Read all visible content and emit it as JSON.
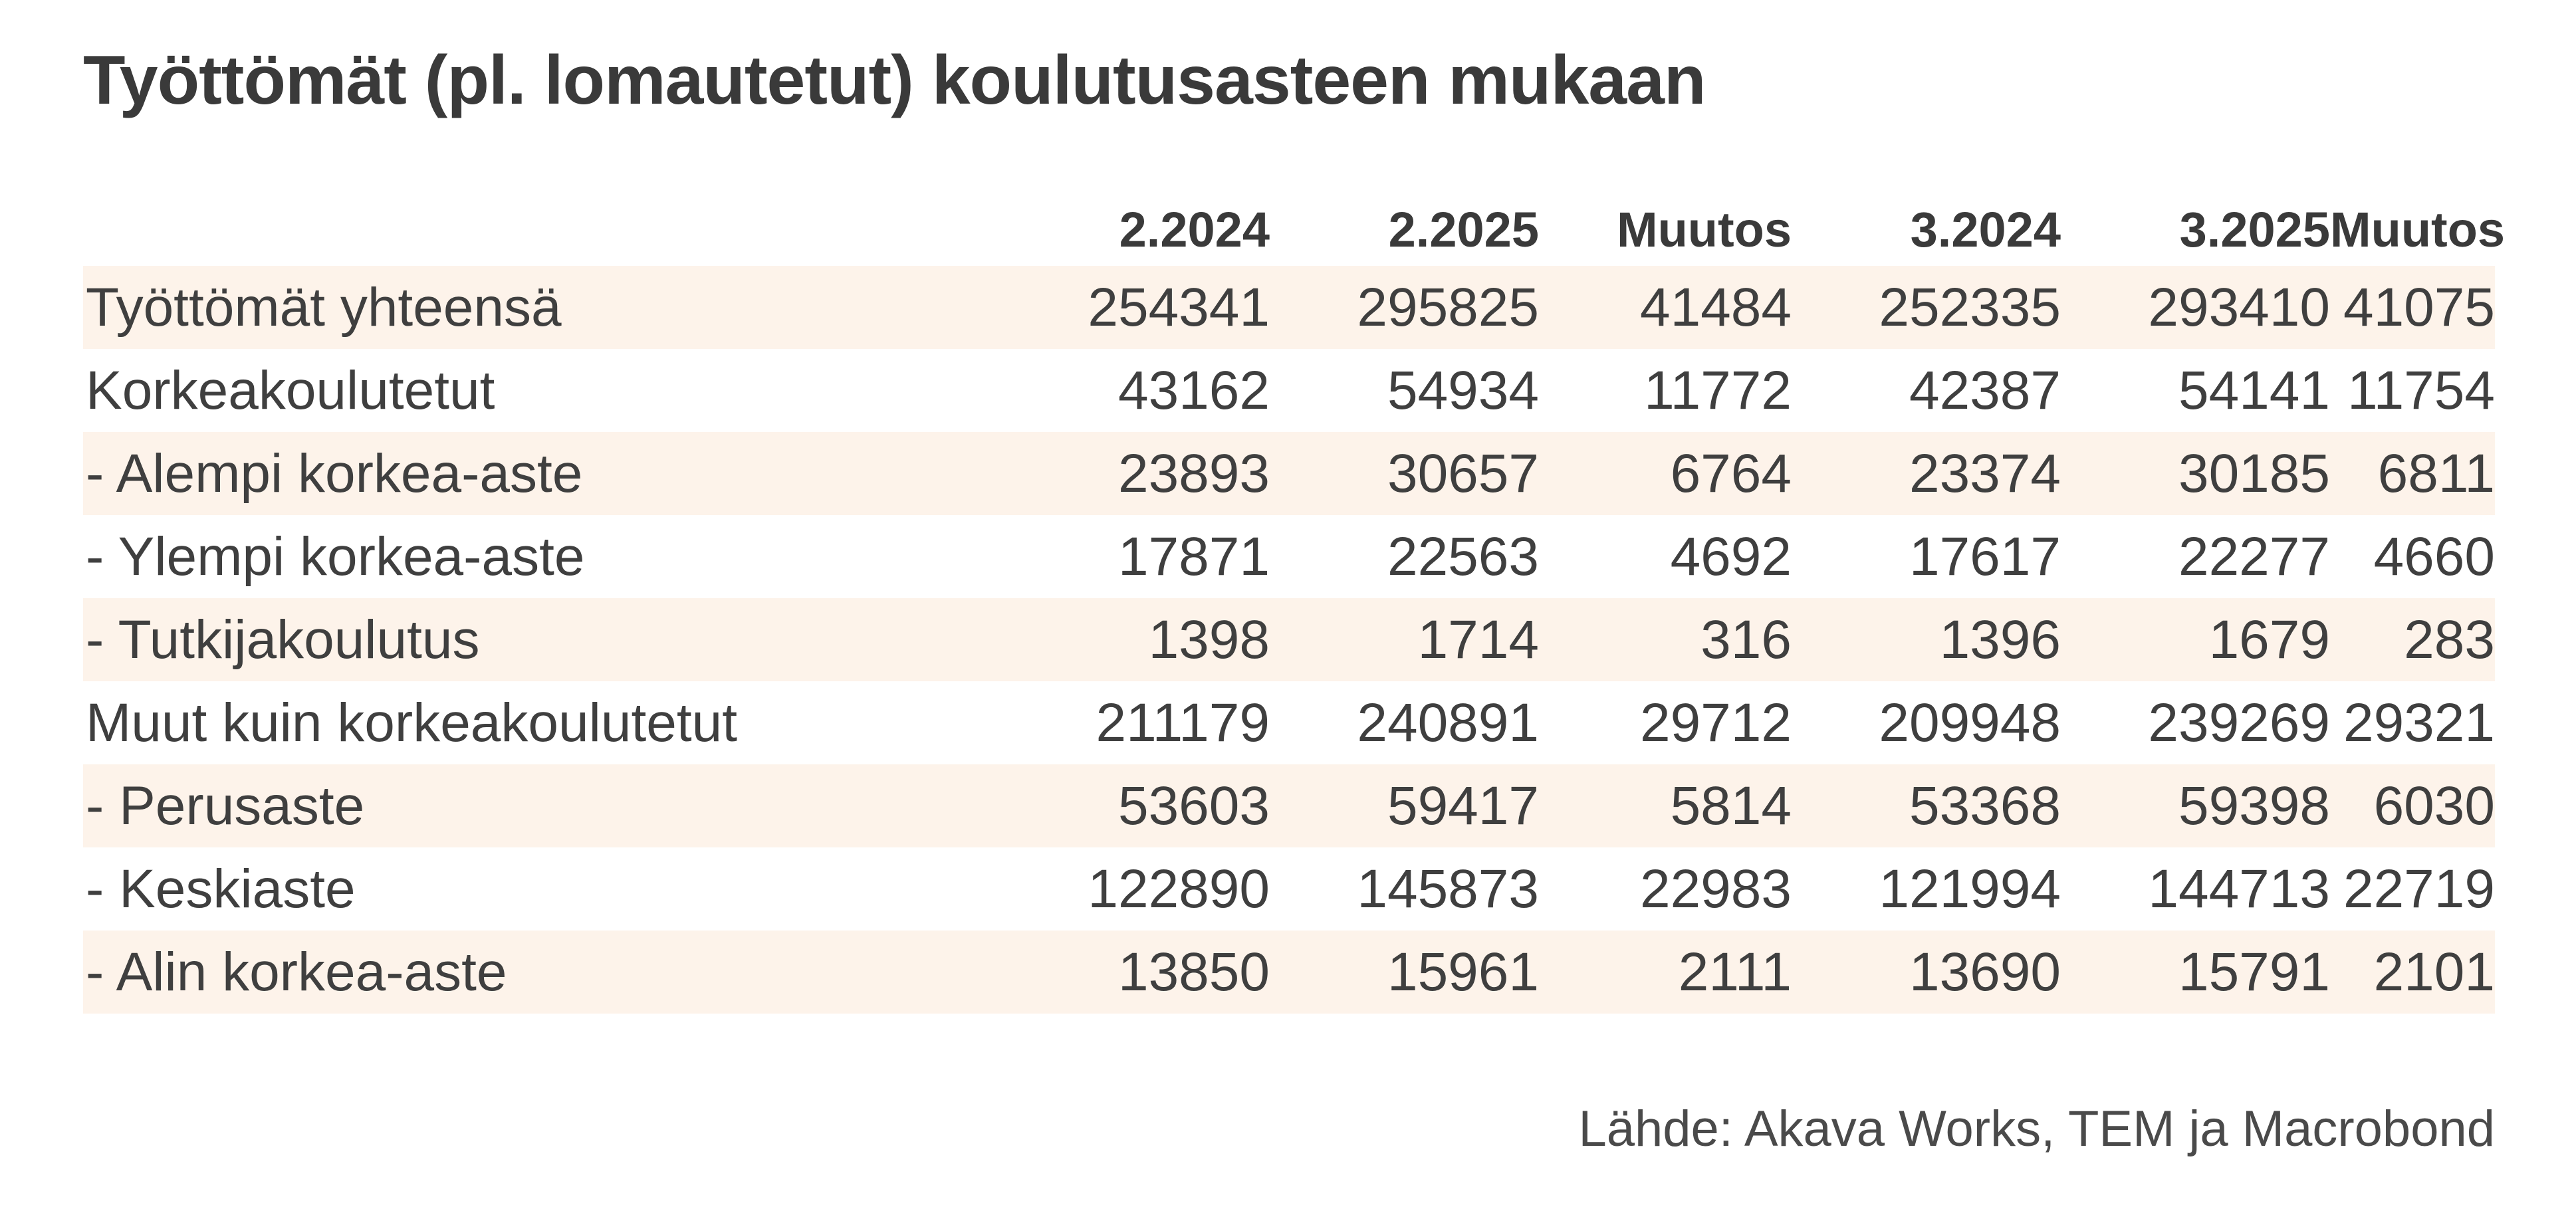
{
  "chart_data": {
    "type": "table",
    "title": "Työttömät (pl. lomautetut) koulutusasteen mukaan",
    "columns": [
      "",
      "2.2024",
      "2.2025",
      "Muutos",
      "3.2024",
      "3.2025",
      "Muutos"
    ],
    "rows": [
      {
        "label": "Työttömät yhteensä",
        "values": [
          "254341",
          "295825",
          "41484",
          "252335",
          "293410",
          "41075"
        ]
      },
      {
        "label": "Korkeakoulutetut",
        "values": [
          "43162",
          "54934",
          "11772",
          "42387",
          "54141",
          "11754"
        ]
      },
      {
        "label": "- Alempi korkea-aste",
        "values": [
          "23893",
          "30657",
          "6764",
          "23374",
          "30185",
          "6811"
        ]
      },
      {
        "label": "- Ylempi korkea-aste",
        "values": [
          "17871",
          "22563",
          "4692",
          "17617",
          "22277",
          "4660"
        ]
      },
      {
        "label": "- Tutkijakoulutus",
        "values": [
          "1398",
          "1714",
          "316",
          "1396",
          "1679",
          "283"
        ]
      },
      {
        "label": "Muut kuin korkeakoulutetut",
        "values": [
          "211179",
          "240891",
          "29712",
          "209948",
          "239269",
          "29321"
        ]
      },
      {
        "label": "- Perusaste",
        "values": [
          "53603",
          "59417",
          "5814",
          "53368",
          "59398",
          "6030"
        ]
      },
      {
        "label": "- Keskiaste",
        "values": [
          "122890",
          "145873",
          "22983",
          "121994",
          "144713",
          "22719"
        ]
      },
      {
        "label": "- Alin korkea-aste",
        "values": [
          "13850",
          "15961",
          "2111",
          "13690",
          "15791",
          "2101"
        ]
      }
    ],
    "source": "Lähde: Akava Works, TEM ja Macrobond",
    "shaded_row_color": "#fdf3ea"
  }
}
